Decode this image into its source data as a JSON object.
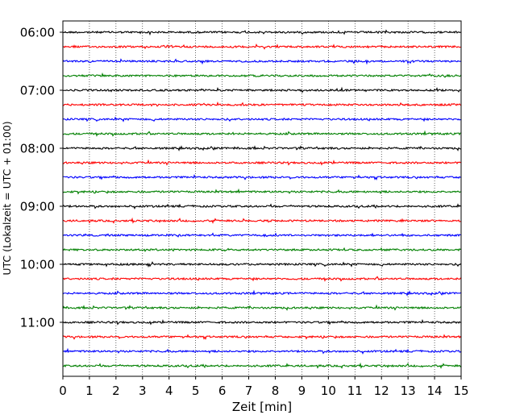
{
  "chart_data": {
    "type": "line",
    "title": "",
    "xlabel": "Zeit  [min]",
    "ylabel": "UTC (Lokalzeit = UTC + 01:00)",
    "xlim": [
      0,
      15
    ],
    "x_ticks": [
      0,
      1,
      2,
      3,
      4,
      5,
      6,
      7,
      8,
      9,
      10,
      11,
      12,
      13,
      14,
      15
    ],
    "x_grid": true,
    "y_tick_labels": [
      "06:00",
      "07:00",
      "08:00",
      "09:00",
      "10:00",
      "11:00"
    ],
    "trace_start": "06:00",
    "trace_interval_min": 15,
    "trace_count": 24,
    "trace_colors": [
      "#000000",
      "#ff0000",
      "#0000ff",
      "#008000"
    ],
    "trace_kind": "seismogram"
  }
}
